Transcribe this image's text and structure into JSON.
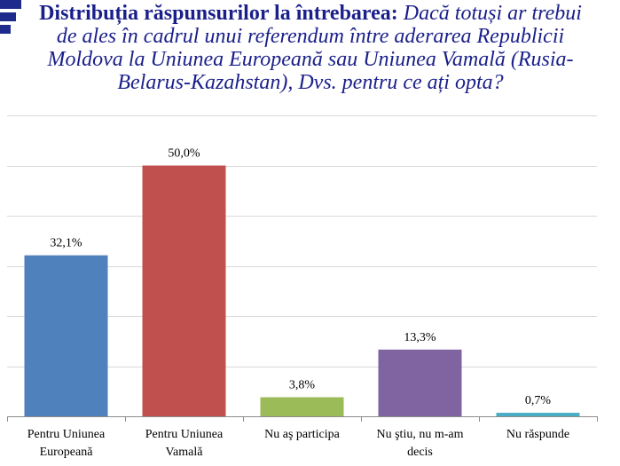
{
  "title": {
    "bold": "Distribuția răspunsurilor la întrebarea:",
    "italic": "Dacă totuși ar trebui de ales în cadrul unui referendum între aderarea Republicii Moldova la Uniunea Europeană sau Uniunea Vamală (Rusia-Belarus-Kazahstan), Dvs. pentru ce ați opta?"
  },
  "colors": {
    "title": "#1a1f8a",
    "accent": "#1f2b8c"
  },
  "chart_data": {
    "type": "bar",
    "categories": [
      [
        "Pentru Uniunea",
        "Europeană"
      ],
      [
        "Pentru Uniunea",
        "Vamală"
      ],
      [
        "Nu aş participa"
      ],
      [
        "Nu ştiu, nu m-am",
        "decis"
      ],
      [
        "Nu răspunde"
      ]
    ],
    "values": [
      32.1,
      50.0,
      3.8,
      13.3,
      0.7
    ],
    "data_labels": [
      "32,1%",
      "50,0%",
      "3,8%",
      "13,3%",
      "0,7%"
    ],
    "colors": [
      "#4f81bd",
      "#c0504d",
      "#9bbb59",
      "#8064a2",
      "#4bacc6"
    ],
    "ylim": [
      0,
      60
    ],
    "grid": true,
    "legend": "none"
  }
}
